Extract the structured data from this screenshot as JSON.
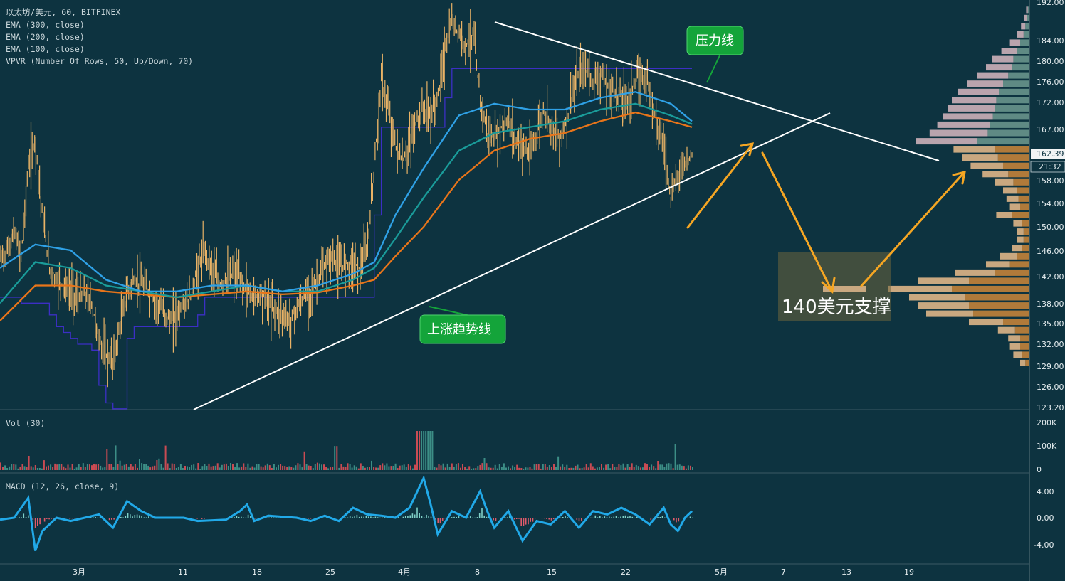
{
  "chart_data": {
    "type": "candlestick",
    "header": {
      "symbol_line": "以太坊/美元, 60, BITFINEX",
      "indicators": [
        "EMA (300, close)",
        "EMA (200, close)",
        "EMA (100, close)",
        "VPVR (Number Of Rows, 50, Up/Down, 70)"
      ]
    },
    "price_axis": {
      "ticks": [
        "192.00",
        "184.00",
        "180.00",
        "176.00",
        "172.00",
        "167.00",
        "162.39",
        "158.00",
        "154.00",
        "150.00",
        "146.00",
        "142.00",
        "138.00",
        "135.00",
        "132.00",
        "129.00",
        "126.00",
        "123.20"
      ],
      "current_price": "162.39",
      "countdown": "21:32"
    },
    "time_axis": [
      "3月",
      "11",
      "18",
      "25",
      "4月",
      "8",
      "15",
      "22",
      "5月",
      "7",
      "13",
      "19"
    ],
    "price_path": [
      [
        0,
        144.5
      ],
      [
        1,
        146
      ],
      [
        2,
        149
      ],
      [
        3,
        145
      ],
      [
        4,
        160
      ],
      [
        5,
        165
      ],
      [
        6,
        152
      ],
      [
        7,
        143
      ],
      [
        8,
        141
      ],
      [
        9,
        140
      ],
      [
        10,
        139
      ],
      [
        11,
        138
      ],
      [
        12,
        138.5
      ],
      [
        13,
        137
      ],
      [
        14,
        131
      ],
      [
        15,
        128
      ],
      [
        16,
        127
      ],
      [
        17,
        133
      ],
      [
        18,
        139
      ],
      [
        19,
        141
      ],
      [
        20,
        140
      ],
      [
        21,
        139
      ],
      [
        22,
        137
      ],
      [
        23,
        136
      ],
      [
        24,
        134
      ],
      [
        25,
        135
      ],
      [
        26,
        137
      ],
      [
        27,
        138
      ],
      [
        28,
        143
      ],
      [
        29,
        146
      ],
      [
        30,
        143
      ],
      [
        31,
        140
      ],
      [
        32,
        141
      ],
      [
        33,
        142
      ],
      [
        34,
        141
      ],
      [
        35,
        139
      ],
      [
        36,
        138
      ],
      [
        37,
        139
      ],
      [
        38,
        137
      ],
      [
        39,
        136
      ],
      [
        40,
        135
      ],
      [
        41,
        134
      ],
      [
        42,
        136
      ],
      [
        43,
        138
      ],
      [
        44,
        139
      ],
      [
        45,
        141
      ],
      [
        46,
        143
      ],
      [
        47,
        145
      ],
      [
        48,
        143
      ],
      [
        49,
        144
      ],
      [
        50,
        144
      ],
      [
        51,
        143
      ],
      [
        52,
        146
      ],
      [
        53,
        160
      ],
      [
        54,
        175
      ],
      [
        55,
        170
      ],
      [
        56,
        164
      ],
      [
        57,
        161
      ],
      [
        58,
        164
      ],
      [
        59,
        168
      ],
      [
        60,
        170
      ],
      [
        61,
        169
      ],
      [
        62,
        172
      ],
      [
        63,
        180
      ],
      [
        64,
        185
      ],
      [
        65,
        183
      ],
      [
        66,
        181
      ],
      [
        67,
        183
      ],
      [
        68,
        172
      ],
      [
        69,
        166
      ],
      [
        70,
        165
      ],
      [
        71,
        167
      ],
      [
        72,
        168
      ],
      [
        73,
        165
      ],
      [
        74,
        164
      ],
      [
        75,
        162
      ],
      [
        76,
        166
      ],
      [
        77,
        170
      ],
      [
        78,
        168
      ],
      [
        79,
        165
      ],
      [
        80,
        167
      ],
      [
        81,
        172
      ],
      [
        82,
        176
      ],
      [
        83,
        177
      ],
      [
        84,
        175
      ],
      [
        85,
        176
      ],
      [
        86,
        174
      ],
      [
        87,
        173
      ],
      [
        88,
        172
      ],
      [
        89,
        172
      ],
      [
        90,
        175
      ],
      [
        91,
        176
      ],
      [
        92,
        174
      ],
      [
        93,
        168
      ],
      [
        94,
        164
      ],
      [
        95,
        155
      ],
      [
        96,
        159
      ],
      [
        97,
        161
      ],
      [
        98,
        162.39
      ]
    ],
    "ema100": [
      [
        0,
        143
      ],
      [
        5,
        147
      ],
      [
        10,
        146
      ],
      [
        15,
        141
      ],
      [
        20,
        139
      ],
      [
        25,
        139
      ],
      [
        30,
        140
      ],
      [
        35,
        140
      ],
      [
        40,
        139
      ],
      [
        45,
        140
      ],
      [
        50,
        142
      ],
      [
        53,
        144
      ],
      [
        56,
        152
      ],
      [
        60,
        160
      ],
      [
        65,
        169
      ],
      [
        70,
        171
      ],
      [
        75,
        170
      ],
      [
        80,
        170
      ],
      [
        85,
        172
      ],
      [
        90,
        173
      ],
      [
        95,
        171
      ],
      [
        98,
        168
      ]
    ],
    "ema200": [
      [
        0,
        137
      ],
      [
        5,
        144
      ],
      [
        10,
        143
      ],
      [
        15,
        140
      ],
      [
        20,
        139
      ],
      [
        25,
        138
      ],
      [
        30,
        139
      ],
      [
        35,
        140
      ],
      [
        40,
        139
      ],
      [
        45,
        139
      ],
      [
        50,
        141
      ],
      [
        53,
        143
      ],
      [
        56,
        148
      ],
      [
        60,
        155
      ],
      [
        65,
        163
      ],
      [
        70,
        166
      ],
      [
        75,
        167
      ],
      [
        80,
        168
      ],
      [
        85,
        170
      ],
      [
        90,
        171
      ],
      [
        95,
        169
      ],
      [
        98,
        167.5
      ]
    ],
    "ema300": [
      [
        0,
        134
      ],
      [
        5,
        140
      ],
      [
        10,
        140
      ],
      [
        15,
        139
      ],
      [
        20,
        138.5
      ],
      [
        25,
        138
      ],
      [
        30,
        138.5
      ],
      [
        35,
        139
      ],
      [
        40,
        138.5
      ],
      [
        45,
        138.8
      ],
      [
        50,
        140
      ],
      [
        53,
        141
      ],
      [
        56,
        145
      ],
      [
        60,
        150
      ],
      [
        65,
        158
      ],
      [
        70,
        163
      ],
      [
        75,
        165
      ],
      [
        80,
        166
      ],
      [
        85,
        168
      ],
      [
        90,
        169.5
      ],
      [
        95,
        168
      ],
      [
        98,
        167
      ]
    ],
    "vpvr_rows": [
      {
        "price": 187,
        "up": 2,
        "down": 1
      },
      {
        "price": 185.6,
        "up": 3,
        "down": 2
      },
      {
        "price": 184.2,
        "up": 5,
        "down": 4
      },
      {
        "price": 182.8,
        "up": 8,
        "down": 6
      },
      {
        "price": 181.4,
        "up": 12,
        "down": 10
      },
      {
        "price": 180,
        "up": 18,
        "down": 14
      },
      {
        "price": 178.6,
        "up": 25,
        "down": 18
      },
      {
        "price": 177.2,
        "up": 30,
        "down": 20
      },
      {
        "price": 175.8,
        "up": 36,
        "down": 24
      },
      {
        "price": 174.4,
        "up": 42,
        "down": 30
      },
      {
        "price": 173,
        "up": 48,
        "down": 35
      },
      {
        "price": 171.6,
        "up": 52,
        "down": 38
      },
      {
        "price": 170.2,
        "up": 55,
        "down": 40
      },
      {
        "price": 168.8,
        "up": 58,
        "down": 42
      },
      {
        "price": 167.4,
        "up": 62,
        "down": 45
      },
      {
        "price": 166,
        "up": 68,
        "down": 48
      },
      {
        "price": 164.6,
        "up": 72,
        "down": 60
      },
      {
        "price": 163.2,
        "up": 48,
        "down": 40
      },
      {
        "price": 161.8,
        "up": 42,
        "down": 36
      },
      {
        "price": 160.4,
        "up": 38,
        "down": 30
      },
      {
        "price": 159,
        "up": 30,
        "down": 24
      },
      {
        "price": 157.6,
        "up": 22,
        "down": 18
      },
      {
        "price": 156.2,
        "up": 16,
        "down": 14
      },
      {
        "price": 154.8,
        "up": 14,
        "down": 12
      },
      {
        "price": 153.4,
        "up": 12,
        "down": 10
      },
      {
        "price": 152,
        "up": 18,
        "down": 20
      },
      {
        "price": 150.6,
        "up": 10,
        "down": 8
      },
      {
        "price": 149.2,
        "up": 8,
        "down": 6
      },
      {
        "price": 147.8,
        "up": 8,
        "down": 6
      },
      {
        "price": 146.4,
        "up": 12,
        "down": 8
      },
      {
        "price": 145,
        "up": 20,
        "down": 14
      },
      {
        "price": 143.6,
        "up": 28,
        "down": 22
      },
      {
        "price": 142.2,
        "up": 46,
        "down": 40
      },
      {
        "price": 140.8,
        "up": 60,
        "down": 70
      },
      {
        "price": 139.4,
        "up": 75,
        "down": 90
      },
      {
        "price": 138,
        "up": 65,
        "down": 75
      },
      {
        "price": 136.6,
        "up": 60,
        "down": 70
      },
      {
        "price": 135.2,
        "up": 55,
        "down": 65
      },
      {
        "price": 133.8,
        "up": 40,
        "down": 30
      },
      {
        "price": 132.4,
        "up": 20,
        "down": 16
      },
      {
        "price": 131,
        "up": 14,
        "down": 10
      },
      {
        "price": 129.6,
        "up": 12,
        "down": 10
      },
      {
        "price": 128.2,
        "up": 10,
        "down": 8
      },
      {
        "price": 126.8,
        "up": 6,
        "down": 4
      }
    ]
  },
  "volume_pane": {
    "label": "Vol (30)",
    "ticks": [
      "200K",
      "100K",
      "0"
    ]
  },
  "macd_pane": {
    "label": "MACD (12, 26, close, 9)",
    "ticks": [
      "4.00",
      "0.00",
      "-4.00"
    ],
    "path": [
      [
        0,
        -0.3
      ],
      [
        2,
        0
      ],
      [
        4,
        3
      ],
      [
        5,
        -5
      ],
      [
        6,
        -2
      ],
      [
        8,
        0
      ],
      [
        10,
        -0.5
      ],
      [
        14,
        0.5
      ],
      [
        16,
        -1.5
      ],
      [
        18,
        2.5
      ],
      [
        20,
        1
      ],
      [
        22,
        0
      ],
      [
        26,
        0
      ],
      [
        28,
        -0.5
      ],
      [
        32,
        -0.3
      ],
      [
        34,
        1
      ],
      [
        35,
        2
      ],
      [
        36,
        -0.5
      ],
      [
        38,
        0.3
      ],
      [
        42,
        0
      ],
      [
        44,
        -0.5
      ],
      [
        46,
        0.3
      ],
      [
        48,
        -0.5
      ],
      [
        50,
        1.5
      ],
      [
        52,
        0.5
      ],
      [
        54,
        0.3
      ],
      [
        56,
        0
      ],
      [
        58,
        1.5
      ],
      [
        60,
        6
      ],
      [
        61,
        2
      ],
      [
        62,
        -2.5
      ],
      [
        64,
        1
      ],
      [
        66,
        0
      ],
      [
        68,
        4
      ],
      [
        69,
        1
      ],
      [
        70,
        -1.5
      ],
      [
        72,
        1
      ],
      [
        74,
        -3.5
      ],
      [
        76,
        -0.5
      ],
      [
        78,
        -1
      ],
      [
        80,
        1
      ],
      [
        82,
        -1.5
      ],
      [
        84,
        1
      ],
      [
        86,
        0.5
      ],
      [
        88,
        1.5
      ],
      [
        90,
        0.5
      ],
      [
        92,
        -1
      ],
      [
        94,
        1.5
      ],
      [
        95,
        -1
      ],
      [
        96,
        -2
      ],
      [
        97,
        0
      ],
      [
        98,
        1
      ]
    ]
  },
  "annotations": {
    "resistance_label": "压力线",
    "trendline_label": "上涨趋势线",
    "support_label": "140美元支撑"
  },
  "colors": {
    "background": "#0d3340",
    "candle": "#e9b366",
    "ema100": "#2fa1e6",
    "ema200": "#1a9c9a",
    "ema300": "#e8751a",
    "step_line": "#3c2fc5",
    "trendline": "#ffffff",
    "arrow": "#f5a623",
    "callout_bg": "#14a43a",
    "vpvr_up": "#c9a880",
    "vpvr_down": "#b07a3a",
    "vpvr_up_top": "#b9a4ad",
    "vpvr_down_top": "#5f8a84",
    "macd_line": "#21a9e8",
    "support_box": "rgba(110,100,60,0.55)"
  }
}
